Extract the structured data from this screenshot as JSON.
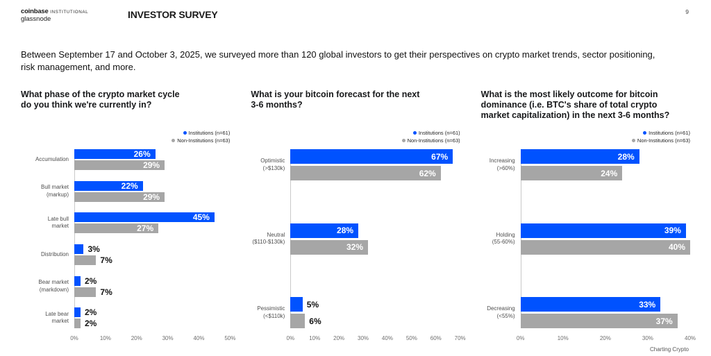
{
  "header": {
    "brand": "coinbase",
    "brand_suffix": "INSTITUTIONAL",
    "brand_line2": "glassnode",
    "doc_title": "INVESTOR SURVEY",
    "page_number": "9"
  },
  "intro": "Between September 17 and October 3, 2025, we surveyed more than 120 global investors to get their perspectives on crypto market trends, sector positioning, risk management, and more.",
  "legend": {
    "institutions": "Institutions (n=61)",
    "non_institutions": "Non-Institutions (n=63)"
  },
  "colors": {
    "institutions": "#0052ff",
    "non_institutions": "#a6a6a6",
    "axis_line": "#c9c9c9"
  },
  "footer": "Charting Crypto",
  "chart_data": [
    {
      "type": "bar",
      "orientation": "horizontal",
      "title": "What phase of the crypto market cycle\ndo you think we're currently in?",
      "categories": [
        "Accumulation",
        "Bull market\n(markup)",
        "Late bull\nmarket",
        "Distribution",
        "Bear market\n(markdown)",
        "Late bear\nmarket"
      ],
      "series": [
        {
          "name": "Institutions (n=61)",
          "values": [
            26,
            22,
            45,
            3,
            2,
            2
          ]
        },
        {
          "name": "Non-Institutions (n=63)",
          "values": [
            29,
            29,
            27,
            7,
            7,
            2
          ]
        }
      ],
      "unit": "%",
      "xlim": [
        0,
        50
      ],
      "xticks": [
        "0%",
        "10%",
        "20%",
        "30%",
        "40%",
        "50%"
      ],
      "grid": false,
      "legend_position": "top-right"
    },
    {
      "type": "bar",
      "orientation": "horizontal",
      "title": "What is your bitcoin forecast for the next\n3-6 months?",
      "categories": [
        "Optimistic\n(>$130k)",
        "Neutral\n($110-$130k)",
        "Pessimistic\n(<$110k)"
      ],
      "series": [
        {
          "name": "Institutions (n=61)",
          "values": [
            67,
            28,
            5
          ]
        },
        {
          "name": "Non-Institutions (n=63)",
          "values": [
            62,
            32,
            6
          ]
        }
      ],
      "unit": "%",
      "xlim": [
        0,
        70
      ],
      "xticks": [
        "0%",
        "10%",
        "20%",
        "30%",
        "40%",
        "50%",
        "60%",
        "70%"
      ],
      "grid": false,
      "legend_position": "top-right"
    },
    {
      "type": "bar",
      "orientation": "horizontal",
      "title": "What is the most likely outcome for bitcoin\ndominance (i.e. BTC's share of total crypto\nmarket capitalization) in the next 3-6 months?",
      "categories": [
        "Increasing\n(>60%)",
        "Holding\n(55-60%)",
        "Decreasing\n(<55%)"
      ],
      "series": [
        {
          "name": "Institutions (n=61)",
          "values": [
            28,
            39,
            33
          ]
        },
        {
          "name": "Non-Institutions (n=63)",
          "values": [
            24,
            40,
            37
          ]
        }
      ],
      "unit": "%",
      "xlim": [
        0,
        40
      ],
      "xticks": [
        "0%",
        "10%",
        "20%",
        "30%",
        "40%"
      ],
      "grid": false,
      "legend_position": "top-right"
    }
  ]
}
